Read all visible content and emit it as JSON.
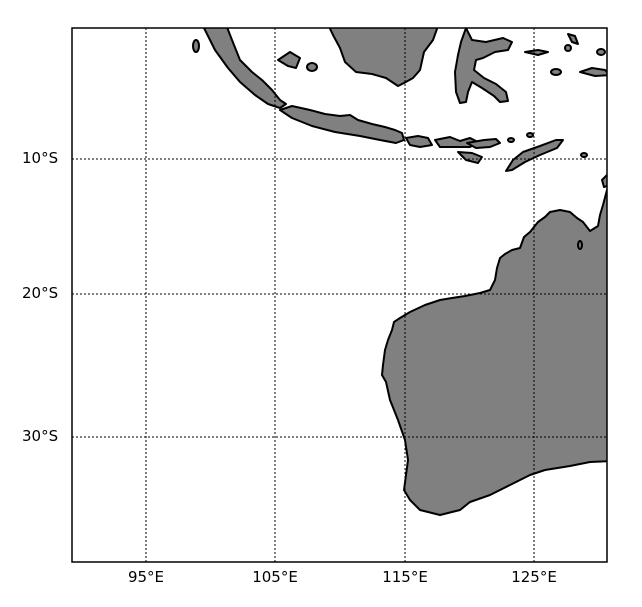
{
  "map": {
    "projection": "mercator",
    "extent": {
      "lon_min": 89.3,
      "lon_max": 130.6,
      "lat_min": -37,
      "lat_max": -0.5
    },
    "land_color": "#808080",
    "ocean_color": "#ffffff",
    "coastline_color": "#000000",
    "gridlines": "dotted",
    "lon_labels": [
      "95°E",
      "105°E",
      "115°E",
      "125°E"
    ],
    "lat_labels": [
      "10°S",
      "20°S",
      "30°S"
    ],
    "regions_shown": [
      "Sumatra",
      "Java",
      "Borneo",
      "Sulawesi",
      "Lesser Sunda Islands",
      "Timor",
      "Western Australia"
    ]
  }
}
